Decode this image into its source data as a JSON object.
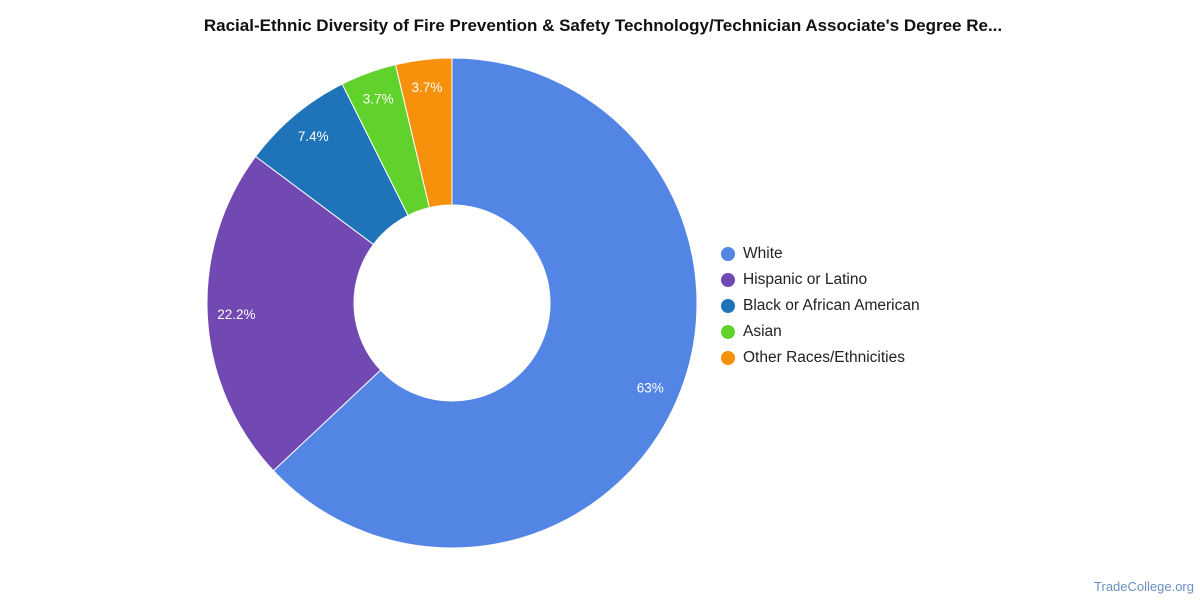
{
  "chart_data": {
    "type": "pie",
    "title": "Racial-Ethnic Diversity of Fire Prevention & Safety Technology/Technician Associate's Degree Re...",
    "categories": [
      "White",
      "Hispanic or Latino",
      "Black or African American",
      "Asian",
      "Other Races/Ethnicities"
    ],
    "values": [
      63,
      22.2,
      7.4,
      3.7,
      3.7
    ],
    "value_labels": [
      "63%",
      "22.2%",
      "7.4%",
      "3.7%",
      "3.7%"
    ],
    "colors": [
      "#5386e4",
      "#7248b3",
      "#1f73b8",
      "#61d12b",
      "#f7900b"
    ],
    "donut": true,
    "legend_position": "right"
  },
  "watermark": "TradeCollege.org"
}
